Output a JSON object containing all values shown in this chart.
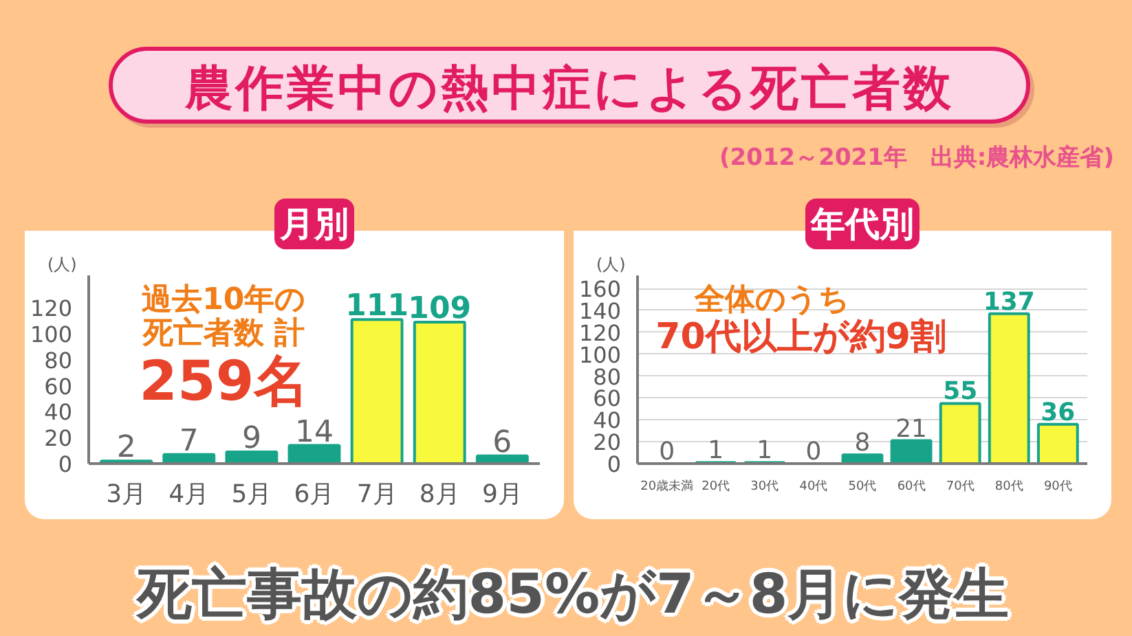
{
  "chart_data": [
    {
      "type": "other",
      "title": "農作業中の熱中症による死亡者数",
      "subtitle": "(2012～2021年　出典:農林水産省)"
    },
    {
      "type": "bar",
      "title": "月別",
      "ylabel": "(人)",
      "categories": [
        "3月",
        "4月",
        "5月",
        "6月",
        "7月",
        "8月",
        "9月"
      ],
      "values": [
        2,
        7,
        9,
        14,
        111,
        109,
        6
      ],
      "colors": [
        "#17a489",
        "#17a489",
        "#17a489",
        "#17a489",
        "#f8f83c",
        "#f8f83c",
        "#17a489"
      ],
      "ylim": [
        0,
        145
      ],
      "yticks": [
        0,
        20,
        40,
        60,
        80,
        100,
        120
      ],
      "data_labels": true,
      "annotations": [
        "過去10年の死亡者数 計",
        "259名"
      ]
    },
    {
      "type": "bar",
      "title": "年代別",
      "ylabel": "(人)",
      "categories": [
        "20歳未満",
        "20代",
        "30代",
        "40代",
        "50代",
        "60代",
        "70代",
        "80代",
        "90代"
      ],
      "values": [
        0,
        1,
        1,
        0,
        8,
        21,
        55,
        137,
        36
      ],
      "colors": [
        "#17a489",
        "#17a489",
        "#17a489",
        "#17a489",
        "#17a489",
        "#17a489",
        "#f8f83c",
        "#f8f83c",
        "#f8f83c"
      ],
      "ylim": [
        0,
        172
      ],
      "yticks": [
        0,
        20,
        40,
        60,
        80,
        100,
        120,
        140,
        160
      ],
      "grid": "y",
      "data_labels": true,
      "annotations": [
        "全体のうち",
        "70代以上が約9割"
      ]
    },
    {
      "type": "other",
      "annotations": [
        "死亡事故の約85%が7～8月に発生"
      ]
    }
  ]
}
